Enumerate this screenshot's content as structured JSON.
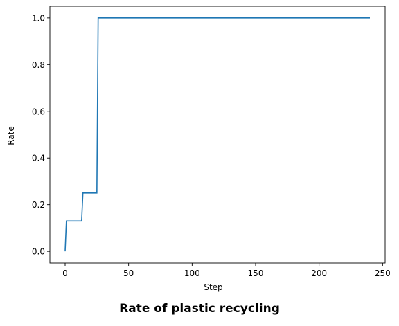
{
  "chart_data": {
    "type": "line",
    "title": "Rate of plastic recycling",
    "xlabel": "Step",
    "ylabel": "Rate",
    "xlim": [
      -12,
      252
    ],
    "ylim": [
      -0.05,
      1.05
    ],
    "xticks": [
      0,
      50,
      100,
      150,
      200,
      250
    ],
    "yticks": [
      0.0,
      0.2,
      0.4,
      0.6,
      0.8,
      1.0
    ],
    "xtick_labels": [
      "0",
      "50",
      "100",
      "150",
      "200",
      "250"
    ],
    "ytick_labels": [
      "0.0",
      "0.2",
      "0.4",
      "0.6",
      "0.8",
      "1.0"
    ],
    "grid": false,
    "legend": "none",
    "series": [
      {
        "color": "#1f77b4",
        "x": [
          0,
          1,
          13,
          14,
          25,
          26,
          240
        ],
        "y": [
          0.0,
          0.13,
          0.13,
          0.25,
          0.25,
          1.0,
          1.0
        ]
      }
    ]
  }
}
